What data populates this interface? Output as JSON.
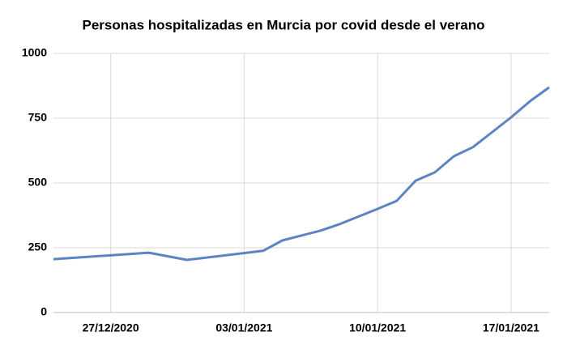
{
  "chart_data": {
    "type": "line",
    "title": "Personas hospitalizadas en Murcia por covid desde el verano",
    "x": [
      "2020-12-24",
      "2020-12-29",
      "2020-12-31",
      "2021-01-04",
      "2021-01-05",
      "2021-01-07",
      "2021-01-08",
      "2021-01-10",
      "2021-01-11",
      "2021-01-12",
      "2021-01-13",
      "2021-01-14",
      "2021-01-15",
      "2021-01-17",
      "2021-01-18",
      "2021-01-19"
    ],
    "values": [
      206,
      231,
      203,
      238,
      278,
      316,
      341,
      400,
      431,
      509,
      541,
      603,
      638,
      753,
      816,
      869
    ],
    "color": "#5b84c4",
    "xlim": [
      "2020-12-24",
      "2021-01-19"
    ],
    "xticks": [
      {
        "value": "2020-12-27",
        "label": "27/12/2020"
      },
      {
        "value": "2021-01-03",
        "label": "03/01/2021"
      },
      {
        "value": "2021-01-10",
        "label": "10/01/2021"
      },
      {
        "value": "2021-01-17",
        "label": "17/01/2021"
      }
    ],
    "ylim": [
      0,
      1000
    ],
    "yticks": [
      0,
      250,
      500,
      750,
      1000
    ],
    "grid": true
  }
}
